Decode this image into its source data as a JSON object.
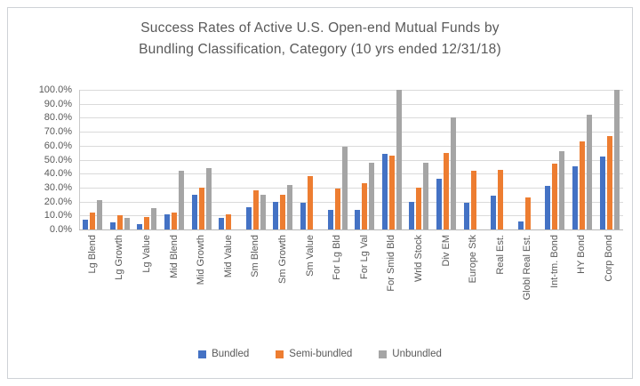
{
  "title": {
    "line1": "Success Rates of Active U.S. Open-end Mutual Funds by",
    "line2": "Bundling Classification, Category (10 yrs ended 12/31/18)"
  },
  "colors": {
    "bundled": "#4472C4",
    "semi_bundled": "#ED7D31",
    "unbundled": "#A5A5A5",
    "gridline": "#dadada",
    "text": "#595959"
  },
  "chart_data": {
    "type": "bar",
    "title": "Success Rates of Active U.S. Open-end Mutual Funds by Bundling Classification, Category (10 yrs ended 12/31/18)",
    "categories": [
      "Lg Blend",
      "Lg Growth",
      "Lg Value",
      "Mid Blend",
      "Mid Growth",
      "Mid Value",
      "Sm Blend",
      "Sm Growth",
      "Sm Value",
      "For Lg Bld",
      "For Lg Val",
      "For Smid Bld",
      "Wrld Stock",
      "Div EM",
      "Europe Stk",
      "Real Est.",
      "Globl Real Est.",
      "Int-tm. Bond",
      "HY Bond",
      "Corp Bond"
    ],
    "series": [
      {
        "name": "Bundled",
        "color": "#4472C4",
        "values": [
          7,
          5,
          4,
          11,
          25,
          8,
          16,
          20,
          19,
          14,
          14,
          54,
          20,
          36,
          19,
          24,
          6,
          31,
          45,
          52
        ]
      },
      {
        "name": "Semi-bundled",
        "color": "#ED7D31",
        "values": [
          12,
          10,
          9,
          12,
          30,
          11,
          28,
          25,
          38,
          29,
          33,
          53,
          30,
          55,
          42,
          43,
          23,
          47,
          63,
          67
        ]
      },
      {
        "name": "Unbundled",
        "color": "#A5A5A5",
        "values": [
          21,
          8,
          15,
          42,
          44,
          0,
          25,
          32,
          0,
          59,
          48,
          100,
          48,
          80,
          0,
          0,
          0,
          56,
          82,
          100
        ]
      }
    ],
    "xlabel": "",
    "ylabel": "",
    "ylim": [
      0,
      100
    ],
    "ytick_step": 10,
    "yticks": [
      "100.0%",
      "90.0%",
      "80.0%",
      "70.0%",
      "60.0%",
      "50.0%",
      "40.0%",
      "30.0%",
      "20.0%",
      "10.0%",
      "0.0%"
    ],
    "grid": true,
    "legend_position": "bottom"
  }
}
